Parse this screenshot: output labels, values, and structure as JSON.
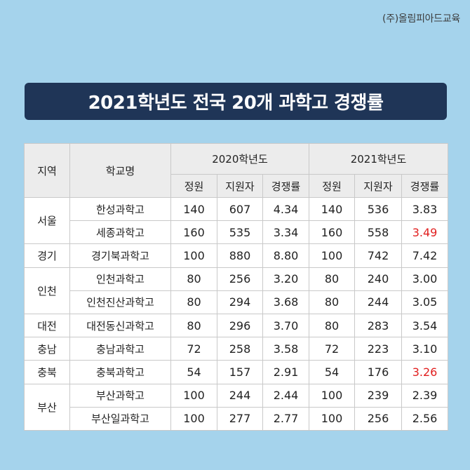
{
  "brand": "(주)올림피아드교육",
  "title": "2021학년도 전국 20개 과학고 경쟁률",
  "headers": {
    "region": "지역",
    "school": "학교명",
    "year2020": "2020학년도",
    "year2021": "2021학년도",
    "quota": "정원",
    "applicants": "지원자",
    "rate": "경쟁률"
  },
  "rows": [
    {
      "region": "서울",
      "school": "한성과학고",
      "q20": "140",
      "a20": "607",
      "r20": "4.34",
      "q21": "140",
      "a21": "536",
      "r21": "3.83"
    },
    {
      "region": "서울",
      "school": "세종과학고",
      "q20": "160",
      "a20": "535",
      "r20": "3.34",
      "q21": "160",
      "a21": "558",
      "r21": "3.49"
    },
    {
      "region": "경기",
      "school": "경기북과학고",
      "q20": "100",
      "a20": "880",
      "r20": "8.80",
      "q21": "100",
      "a21": "742",
      "r21": "7.42"
    },
    {
      "region": "인천",
      "school": "인천과학고",
      "q20": "80",
      "a20": "256",
      "r20": "3.20",
      "q21": "80",
      "a21": "240",
      "r21": "3.00"
    },
    {
      "region": "인천",
      "school": "인천진산과학고",
      "q20": "80",
      "a20": "294",
      "r20": "3.68",
      "q21": "80",
      "a21": "244",
      "r21": "3.05"
    },
    {
      "region": "대전",
      "school": "대전동신과학고",
      "q20": "80",
      "a20": "296",
      "r20": "3.70",
      "q21": "80",
      "a21": "283",
      "r21": "3.54"
    },
    {
      "region": "충남",
      "school": "충남과학고",
      "q20": "72",
      "a20": "258",
      "r20": "3.58",
      "q21": "72",
      "a21": "223",
      "r21": "3.10"
    },
    {
      "region": "충북",
      "school": "충북과학고",
      "q20": "54",
      "a20": "157",
      "r20": "2.91",
      "q21": "54",
      "a21": "176",
      "r21": "3.26"
    },
    {
      "region": "부산",
      "school": "부산과학고",
      "q20": "100",
      "a20": "244",
      "r20": "2.44",
      "q21": "100",
      "a21": "239",
      "r21": "2.39"
    },
    {
      "region": "부산",
      "school": "부산일과학고",
      "q20": "100",
      "a20": "277",
      "r20": "2.77",
      "q21": "100",
      "a21": "256",
      "r21": "2.56"
    }
  ],
  "colors": {
    "background": "#a5d3ec",
    "banner": "#1f3557",
    "header_bg": "#ececec",
    "highlight": "#e11f1f"
  }
}
